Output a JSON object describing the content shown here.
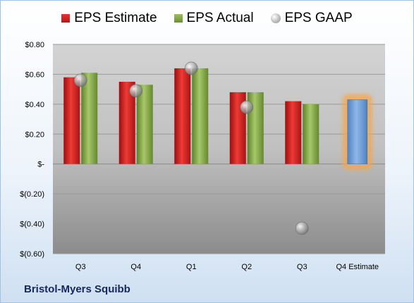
{
  "legend": {
    "estimate": "EPS Estimate",
    "actual": "EPS Actual",
    "gaap": "EPS GAAP"
  },
  "company": "Bristol-Myers Squibb",
  "colors": {
    "estimate": "#d42422",
    "actual": "#86ab48",
    "gaap": "#b0b0b0",
    "q4_estimate": "#6fa0d8",
    "q4_glow": "#f5a64a"
  },
  "chart_data": {
    "type": "bar",
    "categories": [
      "Q3",
      "Q4",
      "Q1",
      "Q2",
      "Q3",
      "Q4 Estimate"
    ],
    "series": [
      {
        "name": "EPS Estimate",
        "values": [
          0.58,
          0.55,
          0.64,
          0.48,
          0.42,
          0.43
        ]
      },
      {
        "name": "EPS Actual",
        "values": [
          0.61,
          0.53,
          0.64,
          0.48,
          0.4,
          null
        ]
      },
      {
        "name": "EPS GAAP",
        "values": [
          0.56,
          0.49,
          0.64,
          0.38,
          -0.43,
          null
        ]
      }
    ],
    "ylim": [
      -0.6,
      0.8
    ],
    "yticks": [
      0.8,
      0.6,
      0.4,
      0.2,
      0,
      -0.2,
      -0.4,
      -0.6
    ],
    "ytick_labels": [
      "$0.80",
      "$0.60",
      "$0.40",
      "$0.20",
      "$-",
      "$(0.20)",
      "$(0.40)",
      "$(0.60)"
    ],
    "grid": true,
    "legend_position": "top"
  }
}
